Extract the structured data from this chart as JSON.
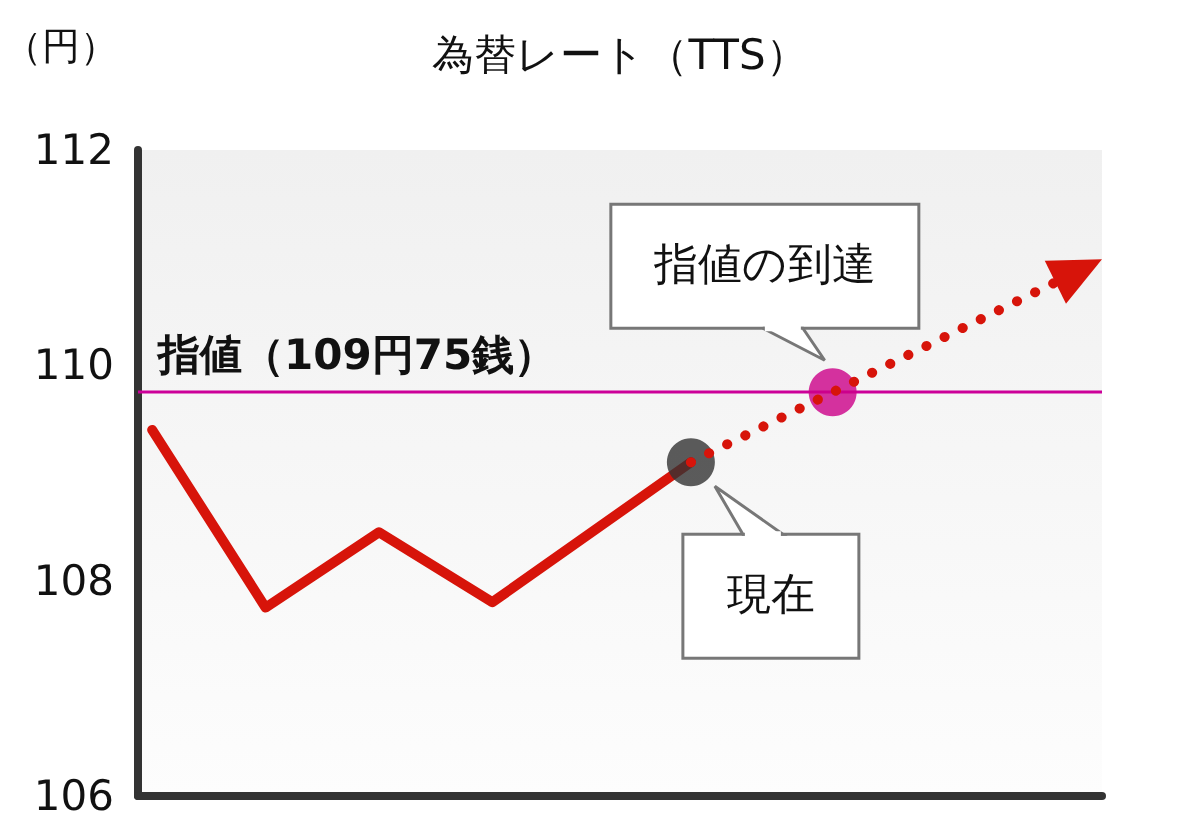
{
  "chart_data": {
    "type": "line",
    "title": "為替レート（TTS）",
    "ylabel": "（円）",
    "categories": [
      null,
      null,
      null,
      null,
      null,
      null,
      null,
      null,
      null,
      null,
      null,
      null,
      null,
      null,
      null,
      null,
      null,
      null,
      null,
      null,
      null,
      null,
      null,
      null,
      null,
      null,
      null,
      null,
      null,
      null,
      null,
      null,
      null,
      null
    ],
    "ylim": [
      106,
      112
    ],
    "yticks": [
      106,
      108,
      110,
      112
    ],
    "tick_labels": "y",
    "grid": false,
    "series": [
      {
        "color": "#d7140a",
        "values": [
          109.4,
          null,
          null,
          null,
          107.75,
          null,
          null,
          null,
          108.45,
          null,
          null,
          null,
          107.8,
          null,
          null,
          null,
          null,
          null,
          null,
          109.1,
          null,
          null,
          null,
          null,
          null,
          null,
          null,
          null,
          null,
          null,
          null,
          null,
          null,
          null
        ],
        "line_style": "solid",
        "marker": "none"
      },
      {
        "type": "scatter",
        "color": "#333333",
        "values": [
          null,
          null,
          null,
          null,
          null,
          null,
          null,
          null,
          null,
          null,
          null,
          null,
          null,
          null,
          null,
          null,
          null,
          null,
          null,
          109.1,
          null,
          null,
          null,
          null,
          null,
          null,
          null,
          null,
          null,
          null,
          null,
          null,
          null,
          null
        ],
        "marker": "circle"
      },
      {
        "type": "scatter",
        "color": "#cc0088",
        "values": [
          null,
          null,
          null,
          null,
          null,
          null,
          null,
          null,
          null,
          null,
          null,
          null,
          null,
          null,
          null,
          null,
          null,
          null,
          null,
          null,
          null,
          null,
          null,
          null,
          109.75,
          null,
          null,
          null,
          null,
          null,
          null,
          null,
          null,
          null
        ],
        "marker": "circle"
      }
    ],
    "ref_lines": [
      {
        "axis": "y",
        "value": 109.75,
        "label": "指値（109円75銭）",
        "color": "#cc0099",
        "line_style": "solid"
      }
    ],
    "annotations": [
      {
        "text": "指値の到達",
        "y": 109.75
      },
      "現在"
    ]
  }
}
